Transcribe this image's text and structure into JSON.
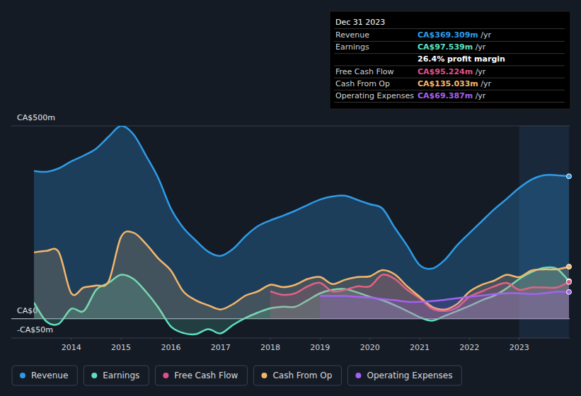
{
  "chart_data": {
    "type": "area",
    "x": [
      2013.25,
      2013.5,
      2013.75,
      2014,
      2014.25,
      2014.5,
      2014.75,
      2015,
      2015.25,
      2015.5,
      2015.75,
      2016,
      2016.25,
      2016.5,
      2016.75,
      2017,
      2017.25,
      2017.5,
      2017.75,
      2018,
      2018.25,
      2018.5,
      2018.75,
      2019,
      2019.25,
      2019.5,
      2019.75,
      2020,
      2020.25,
      2020.5,
      2020.75,
      2021,
      2021.25,
      2021.5,
      2021.75,
      2022,
      2022.25,
      2022.5,
      2022.75,
      2023,
      2023.25,
      2023.5,
      2023.75,
      2024
    ],
    "xlim": [
      2013.25,
      2024
    ],
    "xticks": [
      2014,
      2015,
      2016,
      2017,
      2018,
      2019,
      2020,
      2021,
      2022,
      2023
    ],
    "ylim": [
      -50,
      500
    ],
    "yticks": [
      {
        "value": -50,
        "label": "-CA$50m"
      },
      {
        "value": 0,
        "label": "CA$0"
      },
      {
        "value": 500,
        "label": "CA$500m"
      }
    ],
    "grid": true,
    "legend": "bottom",
    "series": [
      {
        "name": "Revenue",
        "color": "#2d9be8",
        "values": [
          383,
          381,
          390,
          408,
          423,
          441,
          472,
          500,
          478,
          423,
          364,
          286,
          236,
          203,
          174,
          163,
          181,
          214,
          240,
          255,
          267,
          280,
          295,
          309,
          317,
          319,
          308,
          297,
          286,
          236,
          189,
          139,
          130,
          152,
          190,
          222,
          253,
          284,
          311,
          339,
          361,
          372,
          372,
          369.3
        ]
      },
      {
        "name": "Earnings",
        "color": "#5de0c0",
        "values": [
          42,
          -7,
          -13,
          26,
          20,
          75,
          93,
          114,
          103,
          70,
          29,
          -20,
          -37,
          -40,
          -27,
          -38,
          -16,
          2,
          16,
          27,
          31,
          31,
          48,
          66,
          75,
          77,
          68,
          57,
          48,
          35,
          20,
          4,
          -5,
          7,
          20,
          33,
          48,
          60,
          79,
          103,
          121,
          132,
          130,
          97.5
        ]
      },
      {
        "name": "Free Cash Flow",
        "color": "#e0508a",
        "values": [
          null,
          null,
          null,
          null,
          null,
          null,
          null,
          null,
          null,
          null,
          null,
          null,
          null,
          null,
          null,
          null,
          null,
          null,
          null,
          71,
          62,
          66,
          84,
          93,
          71,
          75,
          84,
          84,
          114,
          103,
          75,
          53,
          26,
          20,
          29,
          57,
          71,
          84,
          93,
          75,
          81,
          81,
          81,
          95.2
        ]
      },
      {
        "name": "Cash From Op",
        "color": "#f5b66a",
        "values": [
          172,
          176,
          172,
          66,
          81,
          86,
          97,
          212,
          223,
          194,
          156,
          125,
          71,
          48,
          35,
          24,
          38,
          60,
          71,
          88,
          82,
          88,
          103,
          108,
          90,
          101,
          108,
          110,
          126,
          115,
          84,
          57,
          31,
          24,
          38,
          70,
          88,
          99,
          114,
          108,
          125,
          128,
          128,
          135.0
        ]
      },
      {
        "name": "Operating Expenses",
        "color": "#a461f2",
        "values": [
          null,
          null,
          null,
          null,
          null,
          null,
          null,
          null,
          null,
          null,
          null,
          null,
          null,
          null,
          null,
          null,
          null,
          null,
          null,
          null,
          null,
          null,
          null,
          59,
          59,
          59,
          57,
          55,
          51,
          48,
          44,
          44,
          46,
          49,
          53,
          57,
          60,
          64,
          66,
          66,
          64,
          66,
          70,
          69.4
        ]
      }
    ],
    "tooltip": {
      "date": "Dec 31 2023",
      "rows": [
        {
          "label": "Revenue",
          "value": "CA$369.309m",
          "unit": "/yr"
        },
        {
          "label": "Earnings",
          "value": "CA$97.539m",
          "unit": "/yr"
        },
        {
          "value": "26.4% profit margin"
        },
        {
          "label": "Free Cash Flow",
          "value": "CA$95.224m",
          "unit": "/yr"
        },
        {
          "label": "Cash From Op",
          "value": "CA$135.033m",
          "unit": "/yr"
        },
        {
          "label": "Operating Expenses",
          "value": "CA$69.387m",
          "unit": "/yr"
        }
      ]
    }
  }
}
